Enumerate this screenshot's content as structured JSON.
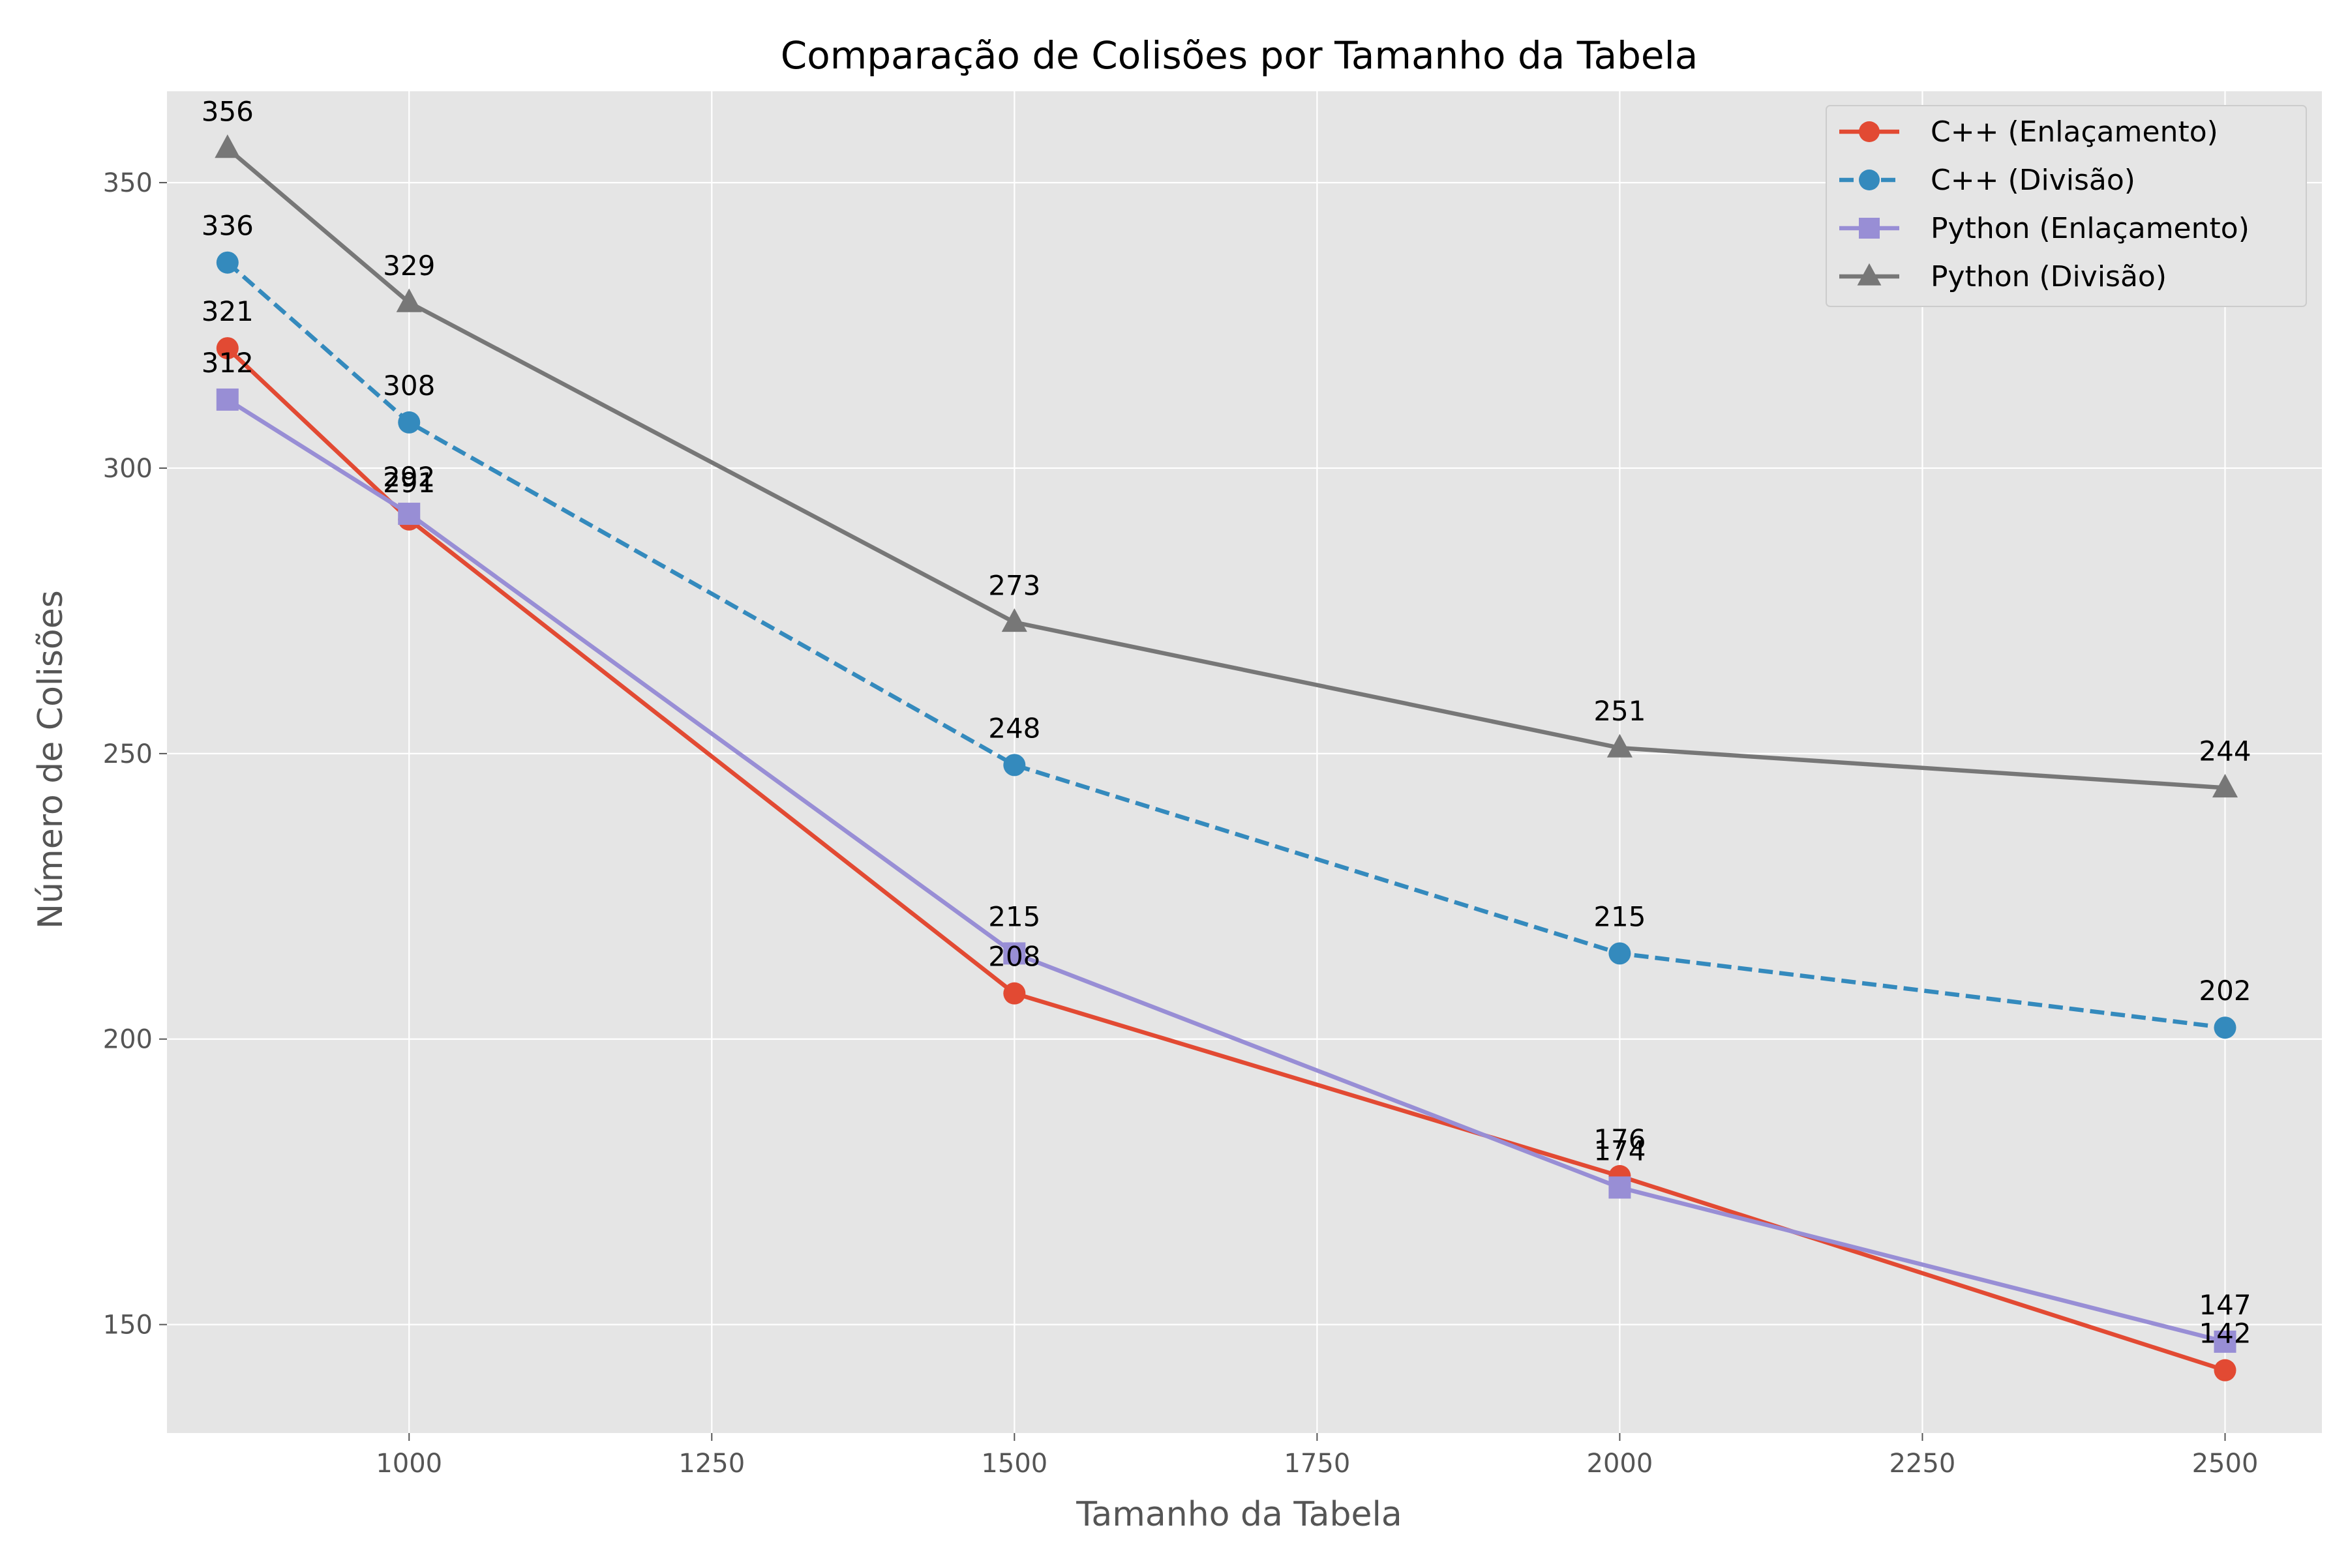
{
  "chart_data": {
    "type": "line",
    "title": "Comparação de Colisões por Tamanho da Tabela",
    "xlabel": "Tamanho da Tabela",
    "ylabel": "Número de Colisões",
    "x": [
      850,
      1000,
      1500,
      2000,
      2500
    ],
    "xlim": [
      800,
      2580
    ],
    "ylim": [
      131,
      366
    ],
    "xticks": [
      1000,
      1250,
      1500,
      1750,
      2000,
      2250,
      2500
    ],
    "yticks": [
      150,
      200,
      250,
      300,
      350
    ],
    "grid": true,
    "legend_position": "top-right",
    "series": [
      {
        "name": "C++ (Enlaçamento)",
        "values": [
          321,
          291,
          208,
          176,
          142
        ],
        "color": "#E24A33",
        "marker": "circle",
        "dash": "solid"
      },
      {
        "name": "C++ (Divisão)",
        "values": [
          336,
          308,
          248,
          215,
          202
        ],
        "color": "#348ABD",
        "marker": "circle",
        "dash": "dashed"
      },
      {
        "name": "Python (Enlaçamento)",
        "values": [
          312,
          292,
          215,
          174,
          147
        ],
        "color": "#988ED5",
        "marker": "square",
        "dash": "solid"
      },
      {
        "name": "Python (Divisão)",
        "values": [
          356,
          329,
          273,
          251,
          244
        ],
        "color": "#777777",
        "marker": "triangle",
        "dash": "solid"
      }
    ]
  }
}
